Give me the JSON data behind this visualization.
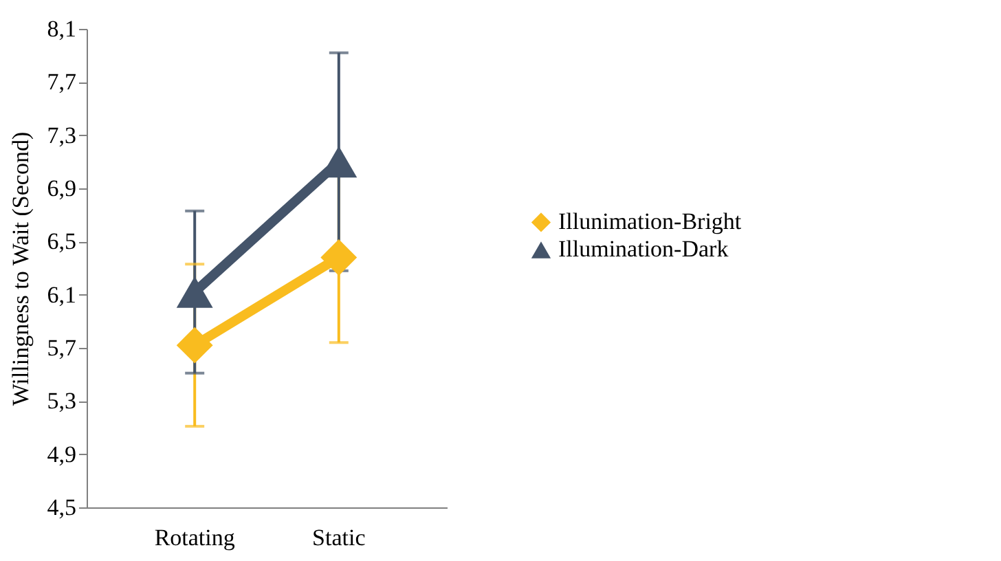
{
  "chart_data": {
    "type": "line",
    "ylabel": "Willingness to Wait (Second)",
    "categories": [
      "Rotating",
      "Static"
    ],
    "series": [
      {
        "name": "Illunimation-Bright",
        "color": "#f9bc1f",
        "marker": "diamond",
        "values": [
          5.72,
          6.38
        ],
        "errors": [
          0.61,
          0.64
        ]
      },
      {
        "name": "Illumination-Dark",
        "color": "#44546a",
        "marker": "triangle",
        "values": [
          6.12,
          7.1
        ],
        "errors": [
          0.61,
          0.82
        ]
      }
    ],
    "ylim": [
      4.5,
      8.1
    ],
    "yticks": [
      {
        "value": 4.5,
        "label": "4,5"
      },
      {
        "value": 4.9,
        "label": "4,9"
      },
      {
        "value": 5.3,
        "label": "5,3"
      },
      {
        "value": 5.7,
        "label": "5,7"
      },
      {
        "value": 6.1,
        "label": "6,1"
      },
      {
        "value": 6.5,
        "label": "6,5"
      },
      {
        "value": 6.9,
        "label": "6,9"
      },
      {
        "value": 7.3,
        "label": "7,3"
      },
      {
        "value": 7.7,
        "label": "7,7"
      },
      {
        "value": 8.1,
        "label": "8,1"
      }
    ],
    "grid": false,
    "legend": "right"
  }
}
